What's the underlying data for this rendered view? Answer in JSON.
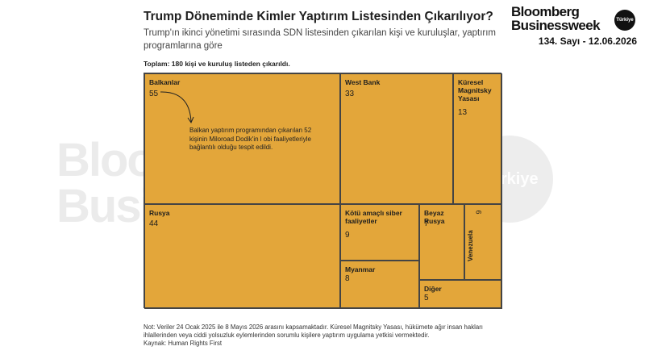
{
  "title": "Trump Döneminde Kimler Yaptırım Listesinden Çıkarılıyor?",
  "subtitle": "Trump'ın ikinci yönetimi sırasında SDN listesinden çıkarılan kişi ve kuruluşlar, yaptırım programlarına göre",
  "total_note": "Toplam: 180 kişi ve kuruluş listeden çıkarıldı.",
  "brand": {
    "line1": "Bloomberg",
    "line2": "Businessweek",
    "badge": "Türkiye",
    "issue": "134. Sayı - 12.06.2026"
  },
  "watermark": {
    "line1": "Bloomberg",
    "line2": "Businessweek",
    "badge": "Türkiye"
  },
  "annotation": "Balkan yaptırım programından çıkarılan 52 kişinin Miloroad Dodik'in l obi faaliyetleriyle bağlantılı olduğu tespit edildi.",
  "footnote": {
    "note": "Not: Veriler 24 Ocak 2025 ile 8 Mayıs 2026 arasını kapsamaktadır. Küresel Magnitsky Yasası, hükümete ağır insan hakları ihlallerinden veya ciddi yolsuzluk eylemlerinden sorumlu kişilere yaptırım uygulama yetkisi vermektedir.",
    "source": "Kaynak: Human Rights First"
  },
  "colors": {
    "fill": "#e3a63a",
    "border": "#444444"
  },
  "chart_data": {
    "type": "treemap",
    "title": "Trump Döneminde Kimler Yaptırım Listesinden Çıkarılıyor?",
    "total": 180,
    "categories": [
      "Balkanlar",
      "West Bank",
      "Küresel Magnitsky Yasası",
      "Rusya",
      "Kötü amaçlı siber faaliyetler",
      "Beyaz Rusya",
      "Venezuela",
      "Myanmar",
      "Diğer"
    ],
    "values": [
      55,
      33,
      13,
      44,
      9,
      7,
      6,
      8,
      5
    ]
  }
}
